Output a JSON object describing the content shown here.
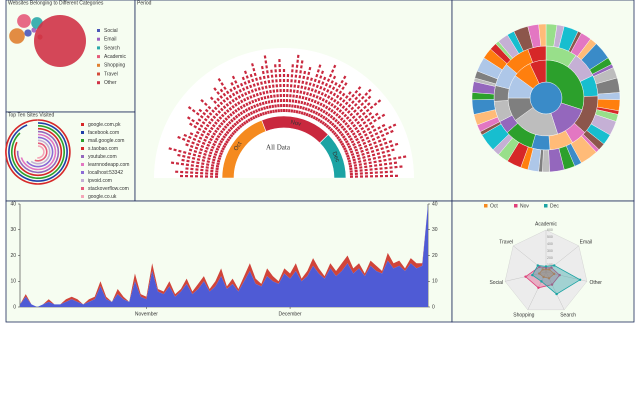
{
  "chart_data": [
    {
      "type": "bubble",
      "title": "Websites Belonging to Different Categories",
      "categories": [
        "Social",
        "Email",
        "Search",
        "Academic",
        "Shopping",
        "Travel",
        "Other"
      ],
      "values": [
        2,
        1,
        5,
        7,
        9,
        1,
        100
      ],
      "colors": [
        "#4b57b8",
        "#9b5fc0",
        "#2aa9a9",
        "#e55a7a",
        "#e08030",
        "#d44b3a",
        "#d03347"
      ]
    },
    {
      "type": "radial-bar",
      "title": "Top Ten Sites Visited",
      "categories": [
        "google.com.pk",
        "facebook.com",
        "mail.google.com",
        "s.taobao.com",
        "youtube.com",
        "learnnodeapp.com",
        "localhost:53342",
        "ipvoid.com",
        "stackoverflow.com",
        "google.co.uk"
      ],
      "values": [
        250,
        235,
        220,
        205,
        190,
        175,
        160,
        150,
        140,
        130
      ],
      "colors": [
        "#d62728",
        "#1f3fa8",
        "#2ca02c",
        "#d62728",
        "#9467bd",
        "#e377c2",
        "#8c6bd6",
        "#c5b0d5",
        "#e55a7a",
        "#f4a6b8"
      ]
    },
    {
      "type": "semi-sunburst",
      "title": "Period",
      "center_label": "All Data",
      "categories": [
        "Oct",
        "Nov",
        "Dec"
      ],
      "values": [
        31,
        30,
        20
      ],
      "colors": [
        "#f58a1f",
        "#c9283e",
        "#1ba3a3"
      ],
      "dash_color": "#c9283e",
      "day_values": [
        [
          8,
          9,
          7,
          10,
          8,
          9,
          11,
          7,
          8,
          10,
          9,
          8,
          7,
          9,
          10,
          8,
          11,
          9,
          8,
          10,
          7,
          9,
          8,
          10,
          9,
          11,
          8,
          9,
          10,
          8,
          9
        ],
        [
          10,
          9,
          11,
          8,
          10,
          12,
          9,
          10,
          11,
          9,
          8,
          10,
          12,
          11,
          9,
          10,
          8,
          11,
          10,
          9,
          12,
          10,
          9,
          11,
          10,
          8,
          9,
          11,
          10,
          12
        ],
        [
          11,
          10,
          12,
          9,
          10,
          11,
          8,
          10,
          12,
          11,
          9,
          10,
          11,
          10,
          9,
          12,
          10,
          11,
          9,
          10
        ]
      ]
    },
    {
      "type": "sunburst",
      "palette": [
        "#3a8bc8",
        "#2ca02c",
        "#9467bd",
        "#bdbdbd",
        "#7f7f7f",
        "#aec7e8",
        "#ff7f0e",
        "#d62728",
        "#98df8a",
        "#c5b0d5",
        "#17becf",
        "#8c564b",
        "#e377c2",
        "#ffbb78"
      ],
      "rings": [
        [
          1
        ],
        [
          30,
          15,
          20,
          10,
          10,
          8,
          7
        ],
        [
          12,
          10,
          8,
          15,
          6,
          9,
          7,
          11,
          5,
          8,
          6,
          9,
          10,
          7
        ],
        [
          3,
          2,
          4,
          1,
          3,
          2,
          5,
          2,
          1,
          3,
          4,
          2,
          3,
          1,
          2,
          4,
          3,
          2,
          1,
          5,
          2,
          3,
          4,
          2,
          1,
          3,
          2,
          4,
          3,
          2,
          5,
          1,
          2,
          3,
          4,
          2,
          3,
          1,
          2,
          4,
          3,
          2,
          1,
          3,
          2,
          4,
          3,
          2
        ]
      ]
    },
    {
      "type": "area",
      "stacked": true,
      "xlim": [
        0,
        71
      ],
      "ylim": [
        0,
        40
      ],
      "yticks": [
        0,
        10,
        20,
        30,
        40
      ],
      "xticks": [
        {
          "value": 22,
          "label": "November"
        },
        {
          "value": 47,
          "label": "December"
        }
      ],
      "series": [
        {
          "color": "#4f5bd5",
          "values": [
            1,
            4,
            1,
            0,
            1,
            2,
            1,
            1,
            2,
            3,
            2,
            1,
            2,
            3,
            8,
            3,
            2,
            5,
            3,
            2,
            10,
            4,
            3,
            14,
            6,
            5,
            8,
            4,
            6,
            9,
            5,
            7,
            10,
            6,
            8,
            12,
            7,
            9,
            6,
            10,
            14,
            9,
            8,
            12,
            10,
            9,
            13,
            11,
            14,
            10,
            12,
            16,
            13,
            11,
            15,
            12,
            14,
            17,
            13,
            15,
            12,
            16,
            14,
            13,
            18,
            15,
            16,
            14,
            17,
            15,
            16,
            40
          ]
        },
        {
          "color": "#d0443a",
          "values": [
            0,
            1,
            0,
            0,
            0,
            1,
            0,
            0,
            1,
            1,
            1,
            0,
            1,
            1,
            2,
            1,
            0,
            2,
            1,
            0,
            3,
            1,
            1,
            3,
            1,
            1,
            2,
            1,
            1,
            2,
            1,
            2,
            2,
            1,
            2,
            3,
            1,
            2,
            1,
            2,
            3,
            2,
            1,
            3,
            2,
            1,
            2,
            2,
            3,
            1,
            2,
            3,
            2,
            1,
            2,
            2,
            3,
            3,
            2,
            2,
            1,
            2,
            2,
            1,
            3,
            2,
            2,
            1,
            2,
            2,
            1,
            0
          ]
        }
      ]
    },
    {
      "type": "radar",
      "categories": [
        "Academic",
        "Email",
        "Other",
        "Search",
        "Shopping",
        "Social",
        "Travel"
      ],
      "rlim": [
        0,
        600
      ],
      "rticks": [
        100,
        200,
        300,
        400,
        500,
        600
      ],
      "series": [
        {
          "name": "Oct",
          "color": "#f58a1f",
          "values": [
            40,
            60,
            120,
            100,
            80,
            100,
            60
          ]
        },
        {
          "name": "Nov",
          "color": "#e0407a",
          "values": [
            60,
            100,
            200,
            200,
            250,
            300,
            120
          ]
        },
        {
          "name": "Dec",
          "color": "#1ba3a3",
          "values": [
            80,
            150,
            500,
            350,
            150,
            200,
            150
          ]
        }
      ]
    }
  ]
}
